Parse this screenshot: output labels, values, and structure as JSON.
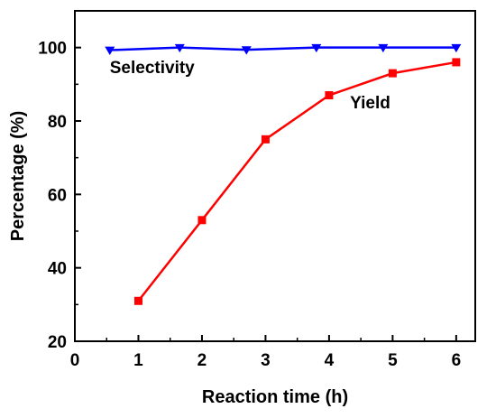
{
  "chart_data": {
    "type": "line",
    "title": "",
    "xlabel": "Reaction time (h)",
    "ylabel": "Percentage (%)",
    "xlim": [
      0,
      6.3
    ],
    "ylim": [
      20,
      110
    ],
    "xticks": [
      "0",
      "1",
      "2",
      "3",
      "4",
      "5",
      "6"
    ],
    "yticks": [
      "20",
      "40",
      "60",
      "80",
      "100"
    ],
    "grid": false,
    "legend": "none",
    "series": [
      {
        "name": "Selectivity",
        "color": "#0000ff",
        "marker": "triangle-down",
        "x": [
          0.55,
          1.65,
          2.7,
          3.8,
          4.85,
          6.0
        ],
        "y": [
          99.3,
          100.0,
          99.4,
          100.0,
          100.0,
          100.0
        ]
      },
      {
        "name": "Yield",
        "color": "#ff0000",
        "marker": "square",
        "x": [
          1,
          2,
          3,
          4,
          5,
          6
        ],
        "y": [
          31,
          53,
          75,
          87,
          93,
          96
        ]
      }
    ]
  }
}
